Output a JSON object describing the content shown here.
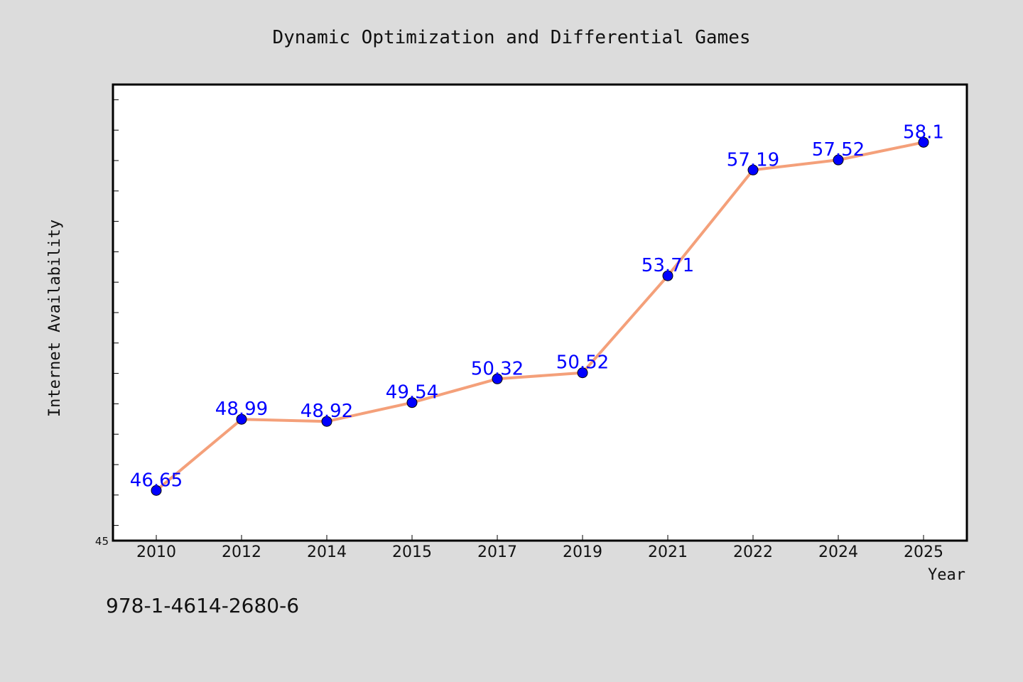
{
  "chart_data": {
    "type": "line",
    "title": "Dynamic Optimization and Differential Games",
    "xlabel": "Year",
    "ylabel": "Internet Availability",
    "categories": [
      "2010",
      "2012",
      "2014",
      "2015",
      "2017",
      "2019",
      "2021",
      "2022",
      "2024",
      "2025"
    ],
    "series": [
      {
        "values": [
          46.65,
          48.99,
          48.92,
          49.54,
          50.32,
          50.52,
          53.71,
          57.19,
          57.52,
          58.1
        ]
      }
    ],
    "data_labels": [
      "46.65",
      "48.99",
      "48.92",
      "49.54",
      "50.32",
      "50.52",
      "53.71",
      "57.19",
      "57.52",
      "58.1"
    ],
    "ylim": [
      45,
      60
    ],
    "y_min_label": "45",
    "grid": false,
    "legend": "none",
    "colors": {
      "line": "#f4a07a",
      "marker": "#0000ff",
      "label": "#0000ff",
      "background": "#dcdcdc",
      "plot_area": "#ffffff"
    }
  },
  "footer": {
    "isbn": "978-1-4614-2680-6"
  }
}
